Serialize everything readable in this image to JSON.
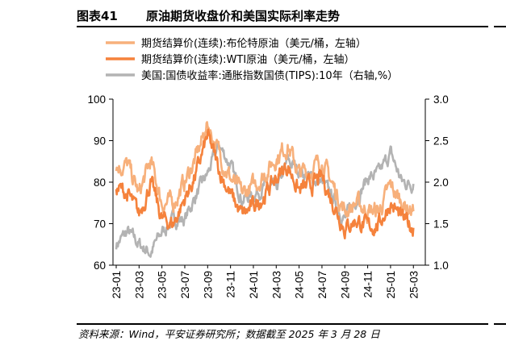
{
  "figure": {
    "number": "图表41",
    "title": "原油期货收盘价和美国实际利率走势",
    "source": "资料来源：Wind，平安证券研究所；数据截至 2025 年 3 月 28 日"
  },
  "chart_data": {
    "type": "line",
    "x_tick_labels": [
      "23-01",
      "23-03",
      "23-05",
      "23-07",
      "23-09",
      "23-11",
      "24-01",
      "24-03",
      "24-05",
      "24-07",
      "24-09",
      "24-11",
      "25-01",
      "25-03"
    ],
    "y_left": {
      "min": 60,
      "max": 100,
      "ticks": [
        "60",
        "70",
        "80",
        "90",
        "100"
      ]
    },
    "y_right": {
      "min": 1.0,
      "max": 3.0,
      "ticks": [
        "1.0",
        "1.5",
        "2.0",
        "2.5",
        "3.0"
      ]
    },
    "series": [
      {
        "name": "期货结算价(连续):布伦特原油（美元/桶，左轴）",
        "axis": "left",
        "color": "#f7b07b",
        "x": [
          "23-01",
          "23-02",
          "23-03",
          "23-04",
          "23-05",
          "23-06",
          "23-07",
          "23-08",
          "23-09",
          "23-10",
          "23-11",
          "23-12",
          "24-01",
          "24-02",
          "24-03",
          "24-04",
          "24-05",
          "24-06",
          "24-07",
          "24-08",
          "24-09",
          "24-10",
          "24-11",
          "24-12",
          "25-01",
          "25-02",
          "25-03"
        ],
        "values": [
          84,
          84,
          77,
          85,
          75,
          75,
          80,
          86,
          94,
          87,
          81,
          77,
          79,
          82,
          86,
          89,
          82,
          83,
          85,
          79,
          73,
          75,
          73,
          73,
          79,
          75,
          73
        ]
      },
      {
        "name": "期货结算价(连续):WTI原油（美元/桶，左轴）",
        "axis": "left",
        "color": "#f5823c",
        "x": [
          "23-01",
          "23-02",
          "23-03",
          "23-04",
          "23-05",
          "23-06",
          "23-07",
          "23-08",
          "23-09",
          "23-10",
          "23-11",
          "23-12",
          "24-01",
          "24-02",
          "24-03",
          "24-04",
          "24-05",
          "24-06",
          "24-07",
          "24-08",
          "24-09",
          "24-10",
          "24-11",
          "24-12",
          "25-01",
          "25-02",
          "25-03"
        ],
        "values": [
          79,
          77,
          72,
          80,
          71,
          70,
          76,
          82,
          91,
          83,
          77,
          72,
          74,
          77,
          81,
          84,
          78,
          79,
          81,
          75,
          69,
          71,
          69,
          70,
          75,
          71,
          69
        ]
      },
      {
        "name": "美国:国债收益率:通胀指数国债(TIPS):10年（右轴,%）",
        "axis": "right",
        "color": "#b3b3b3",
        "x": [
          "23-01",
          "23-02",
          "23-03",
          "23-04",
          "23-05",
          "23-06",
          "23-07",
          "23-08",
          "23-09",
          "23-10",
          "23-11",
          "23-12",
          "24-01",
          "24-02",
          "24-03",
          "24-04",
          "24-05",
          "24-06",
          "24-07",
          "24-08",
          "24-09",
          "24-10",
          "24-11",
          "24-12",
          "25-01",
          "25-02",
          "25-03"
        ],
        "values": [
          1.25,
          1.4,
          1.25,
          1.15,
          1.4,
          1.55,
          1.55,
          1.85,
          2.1,
          2.45,
          2.2,
          1.8,
          1.85,
          1.95,
          1.9,
          2.25,
          2.15,
          2.05,
          2.0,
          1.8,
          1.55,
          1.8,
          2.05,
          2.1,
          2.35,
          2.0,
          1.98
        ]
      }
    ],
    "legend_position": "top",
    "grid": false
  }
}
